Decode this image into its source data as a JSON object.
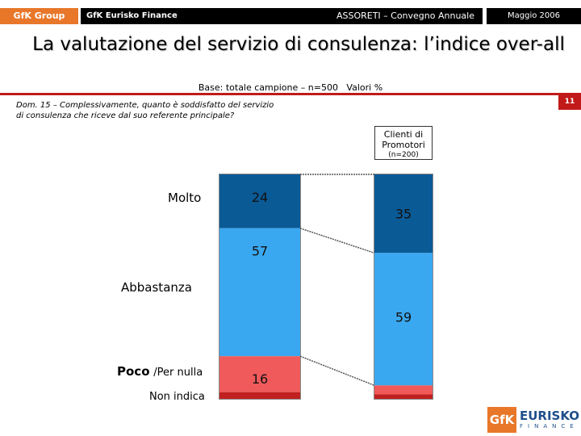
{
  "header": {
    "left": "GfK Group",
    "sub": "GfK Eurisko Finance",
    "center": "ASSORETI – Convegno Annuale",
    "right": "Maggio   2006"
  },
  "title": "La valutazione del servizio di consulenza: l’indice over-all",
  "base": "Base: totale campione – n=500   Valori %",
  "page_number": "11",
  "question": {
    "line1": "Dom. 15 – Complessivamente, quanto è soddisfatto del servizio",
    "line2": "di consulenza che riceve dal  suo referente principale?"
  },
  "column2": {
    "title": "Clienti di Promotori",
    "n": "(n=200)"
  },
  "labels": {
    "molto": "Molto",
    "abbastanza": "Abbastanza",
    "poco_a": "Poco",
    "poco_b": "/Per nulla",
    "non_indica": "Non indica"
  },
  "logo": {
    "gfk": "GfK",
    "eurisko": "EURISKO",
    "finance": "FINANCE"
  },
  "colors": {
    "molto": "#0a5a96",
    "abbastanza": "#3aa8f0",
    "poco": "#f05a5a",
    "non_indica": "#c02020",
    "accent": "#c21a1a",
    "orange": "#e8772a"
  },
  "chart_data": {
    "type": "bar",
    "stacked": true,
    "categories": [
      "",
      "Clienti di Promotori"
    ],
    "series": [
      {
        "name": "Molto",
        "values": [
          24,
          35
        ],
        "labels": [
          "24",
          "35"
        ]
      },
      {
        "name": "Abbastanza",
        "values": [
          57,
          59
        ],
        "labels": [
          "57",
          "59"
        ]
      },
      {
        "name": "Poco /Per nulla",
        "values": [
          16,
          4
        ],
        "labels": [
          "16",
          ""
        ]
      },
      {
        "name": "Non indica",
        "values": [
          3,
          2
        ],
        "labels": [
          "",
          ""
        ]
      }
    ],
    "ylim": [
      0,
      100
    ]
  }
}
